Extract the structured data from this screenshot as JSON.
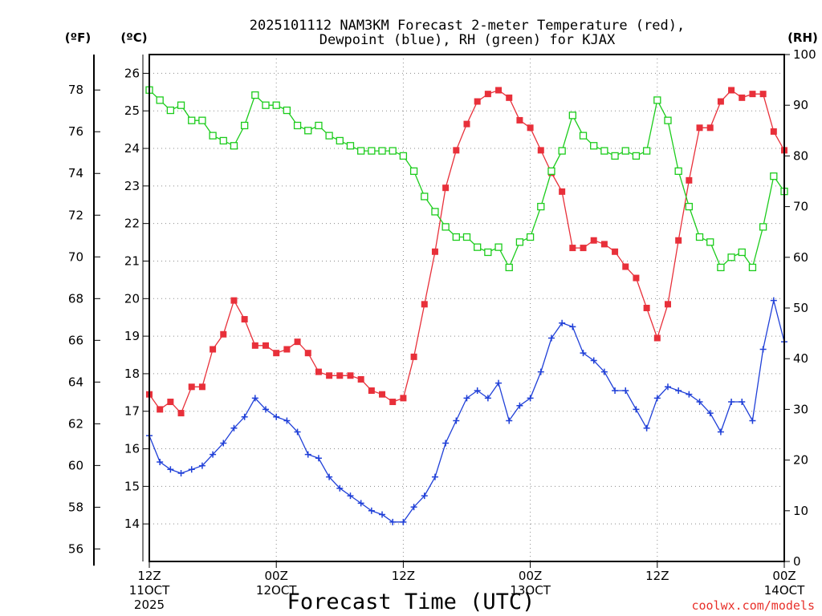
{
  "chart_data": {
    "type": "line",
    "title_lines": [
      "2025101112 NAM3KM Forecast 2-meter Temperature (red),",
      "Dewpoint (blue), RH (green) for KJAX"
    ],
    "units": {
      "fahrenheit": "(ºF)",
      "celsius": "(ºC)",
      "rh": "(RH)"
    },
    "xlabel": "Forecast Time (UTC)",
    "credit": "coolwx.com/models",
    "x_hours_range": [
      0,
      60
    ],
    "x_ticks": [
      {
        "hour": 0,
        "lines": [
          "12Z",
          "11OCT",
          "2025"
        ]
      },
      {
        "hour": 12,
        "lines": [
          "00Z",
          "12OCT"
        ]
      },
      {
        "hour": 24,
        "lines": [
          "12Z"
        ]
      },
      {
        "hour": 36,
        "lines": [
          "00Z",
          "13OCT"
        ]
      },
      {
        "hour": 48,
        "lines": [
          "12Z"
        ]
      },
      {
        "hour": 60,
        "lines": [
          "00Z",
          "14OCT"
        ]
      }
    ],
    "celsius_range": [
      13.0,
      26.5
    ],
    "celsius_ticks": [
      "14",
      "15",
      "16",
      "17",
      "18",
      "19",
      "20",
      "21",
      "22",
      "23",
      "24",
      "25",
      "26"
    ],
    "fahrenheit_ticks": [
      "56",
      "58",
      "60",
      "62",
      "64",
      "66",
      "68",
      "70",
      "72",
      "74",
      "76",
      "78"
    ],
    "rh_range": [
      0,
      100
    ],
    "rh_ticks": [
      "0",
      "10",
      "20",
      "30",
      "40",
      "50",
      "60",
      "70",
      "80",
      "90",
      "100"
    ],
    "series": [
      {
        "name": "Temperature",
        "unit": "C",
        "color": "#e8303a",
        "marker": "filled-square",
        "values": [
          17.45,
          17.05,
          17.25,
          16.95,
          17.65,
          17.65,
          18.65,
          19.05,
          19.95,
          19.45,
          18.75,
          18.75,
          18.55,
          18.65,
          18.85,
          18.55,
          18.05,
          17.95,
          17.95,
          17.95,
          17.85,
          17.55,
          17.45,
          17.25,
          17.35,
          18.45,
          19.85,
          21.25,
          22.95,
          23.95,
          24.65,
          25.25,
          25.45,
          25.55,
          25.35,
          24.75,
          24.55,
          23.95,
          23.35,
          22.85,
          21.35,
          21.35,
          21.55,
          21.45,
          21.25,
          20.85,
          20.55,
          19.75,
          18.95,
          19.85,
          21.55,
          23.15,
          24.55,
          24.55,
          25.25,
          25.55,
          25.35,
          25.45,
          25.45,
          24.45,
          23.95
        ]
      },
      {
        "name": "Dewpoint",
        "unit": "C",
        "color": "#2040d8",
        "marker": "plus",
        "values": [
          16.35,
          15.65,
          15.45,
          15.35,
          15.45,
          15.55,
          15.85,
          16.15,
          16.55,
          16.85,
          17.35,
          17.05,
          16.85,
          16.75,
          16.45,
          15.85,
          15.75,
          15.25,
          14.95,
          14.75,
          14.55,
          14.35,
          14.25,
          14.05,
          14.05,
          14.45,
          14.75,
          15.25,
          16.15,
          16.75,
          17.35,
          17.55,
          17.35,
          17.75,
          16.75,
          17.15,
          17.35,
          18.05,
          18.95,
          19.35,
          19.25,
          18.55,
          18.35,
          18.05,
          17.55,
          17.55,
          17.05,
          16.55,
          17.35,
          17.65,
          17.55,
          17.45,
          17.25,
          16.95,
          16.45,
          17.25,
          17.25,
          16.75,
          18.65,
          19.95,
          18.85
        ]
      },
      {
        "name": "RH",
        "unit": "%",
        "color": "#1ccc1c",
        "marker": "open-square",
        "values": [
          93,
          91,
          89,
          90,
          87,
          87,
          84,
          83,
          82,
          86,
          92,
          90,
          90,
          89,
          86,
          85,
          86,
          84,
          83,
          82,
          81,
          81,
          81,
          81,
          80,
          77,
          72,
          69,
          66,
          64,
          64,
          62,
          61,
          62,
          58,
          63,
          64,
          70,
          77,
          81,
          88,
          84,
          82,
          81,
          80,
          81,
          80,
          81,
          91,
          87,
          77,
          70,
          64,
          63,
          58,
          60,
          61,
          58,
          66,
          76,
          73
        ]
      }
    ]
  }
}
